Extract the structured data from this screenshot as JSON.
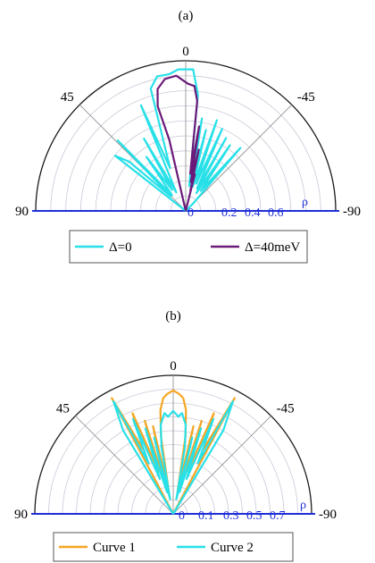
{
  "chart_data": [
    {
      "panel": "(a)",
      "type": "polar-line",
      "angle_labels": [
        "0",
        "45",
        "-45",
        "90",
        "-90"
      ],
      "radial_ticks": [
        "0",
        "0.2",
        "0.4",
        "0.6"
      ],
      "radial_axis_label": "ρ",
      "rmax": 0.72,
      "theta_range_deg": [
        -90,
        90
      ],
      "grid": true,
      "legend_position": "bottom",
      "series": [
        {
          "name": "Δ=0",
          "color": "#27e0e8",
          "points": [
            [
              0,
              0
            ],
            [
              52,
              0.43
            ],
            [
              49,
              0.36
            ],
            [
              46,
              0.1
            ],
            [
              44,
              0.47
            ],
            [
              41,
              0.1
            ],
            [
              36,
              0.32
            ],
            [
              33,
              0.12
            ],
            [
              30,
              0.4
            ],
            [
              27,
              0.1
            ],
            [
              23,
              0.55
            ],
            [
              20,
              0.22
            ],
            [
              16,
              0.61
            ],
            [
              12,
              0.66
            ],
            [
              7,
              0.66
            ],
            [
              3,
              0.68
            ],
            [
              -3,
              0.68
            ],
            [
              -6,
              0.56
            ],
            [
              -8,
              0.12
            ],
            [
              -10,
              0.45
            ],
            [
              -12,
              0.14
            ],
            [
              -14,
              0.4
            ],
            [
              -16,
              0.12
            ],
            [
              -19,
              0.46
            ],
            [
              -21,
              0.14
            ],
            [
              -24,
              0.43
            ],
            [
              -27,
              0.12
            ],
            [
              -29,
              0.4
            ],
            [
              -31,
              0.1
            ],
            [
              -34,
              0.38
            ],
            [
              -37,
              0.12
            ],
            [
              -41,
              0.4
            ],
            [
              -45,
              0.05
            ],
            [
              0,
              0
            ]
          ]
        },
        {
          "name": "Δ=40meV",
          "color": "#6b1a7a",
          "points": [
            [
              0,
              0
            ],
            [
              13,
              0.35
            ],
            [
              15,
              0.52
            ],
            [
              13,
              0.6
            ],
            [
              9,
              0.64
            ],
            [
              4,
              0.65
            ],
            [
              -1,
              0.61
            ],
            [
              -4,
              0.6
            ],
            [
              -6,
              0.53
            ],
            [
              -7,
              0.18
            ],
            [
              -9,
              0.41
            ],
            [
              -10,
              0.14
            ],
            [
              -12,
              0.3
            ],
            [
              -13,
              0.1
            ],
            [
              -14,
              0.18
            ],
            [
              0,
              0
            ]
          ]
        }
      ]
    },
    {
      "panel": "(b)",
      "type": "polar-line",
      "angle_labels": [
        "0",
        "45",
        "-45",
        "90",
        "-90"
      ],
      "radial_ticks": [
        "0",
        "0.1",
        "0.3",
        "0.5",
        "0.7"
      ],
      "radial_axis_label": "ρ",
      "rmax": 0.74,
      "theta_range_deg": [
        -90,
        90
      ],
      "grid": true,
      "legend_position": "bottom",
      "series": [
        {
          "name": "Curve 1",
          "color": "#f5a623",
          "points": [
            [
              0,
              0
            ],
            [
              28,
              0.7
            ],
            [
              25,
              0.38
            ],
            [
              22,
              0.58
            ],
            [
              19,
              0.24
            ],
            [
              17,
              0.52
            ],
            [
              15,
              0.16
            ],
            [
              13,
              0.48
            ],
            [
              11,
              0.12
            ],
            [
              9,
              0.42
            ],
            [
              7,
              0.56
            ],
            [
              5,
              0.62
            ],
            [
              3,
              0.64
            ],
            [
              0,
              0.66
            ],
            [
              -3,
              0.64
            ],
            [
              -5,
              0.62
            ],
            [
              -7,
              0.56
            ],
            [
              -9,
              0.42
            ],
            [
              -11,
              0.12
            ],
            [
              -13,
              0.48
            ],
            [
              -15,
              0.16
            ],
            [
              -17,
              0.52
            ],
            [
              -19,
              0.24
            ],
            [
              -22,
              0.58
            ],
            [
              -25,
              0.38
            ],
            [
              -28,
              0.7
            ],
            [
              0,
              0
            ]
          ]
        },
        {
          "name": "Curve 2",
          "color": "#27e0e8",
          "points": [
            [
              0,
              0
            ],
            [
              31,
              0.52
            ],
            [
              28,
              0.68
            ],
            [
              26,
              0.3
            ],
            [
              23,
              0.55
            ],
            [
              21,
              0.2
            ],
            [
              18,
              0.48
            ],
            [
              16,
              0.12
            ],
            [
              14,
              0.42
            ],
            [
              12,
              0.08
            ],
            [
              10,
              0.36
            ],
            [
              8,
              0.48
            ],
            [
              5,
              0.54
            ],
            [
              3,
              0.52
            ],
            [
              0,
              0.55
            ],
            [
              -3,
              0.52
            ],
            [
              -5,
              0.54
            ],
            [
              -8,
              0.48
            ],
            [
              -10,
              0.36
            ],
            [
              -12,
              0.08
            ],
            [
              -14,
              0.42
            ],
            [
              -16,
              0.12
            ],
            [
              -18,
              0.48
            ],
            [
              -21,
              0.2
            ],
            [
              -23,
              0.55
            ],
            [
              -26,
              0.3
            ],
            [
              -28,
              0.68
            ],
            [
              -31,
              0.52
            ],
            [
              0,
              0
            ]
          ]
        }
      ]
    }
  ]
}
